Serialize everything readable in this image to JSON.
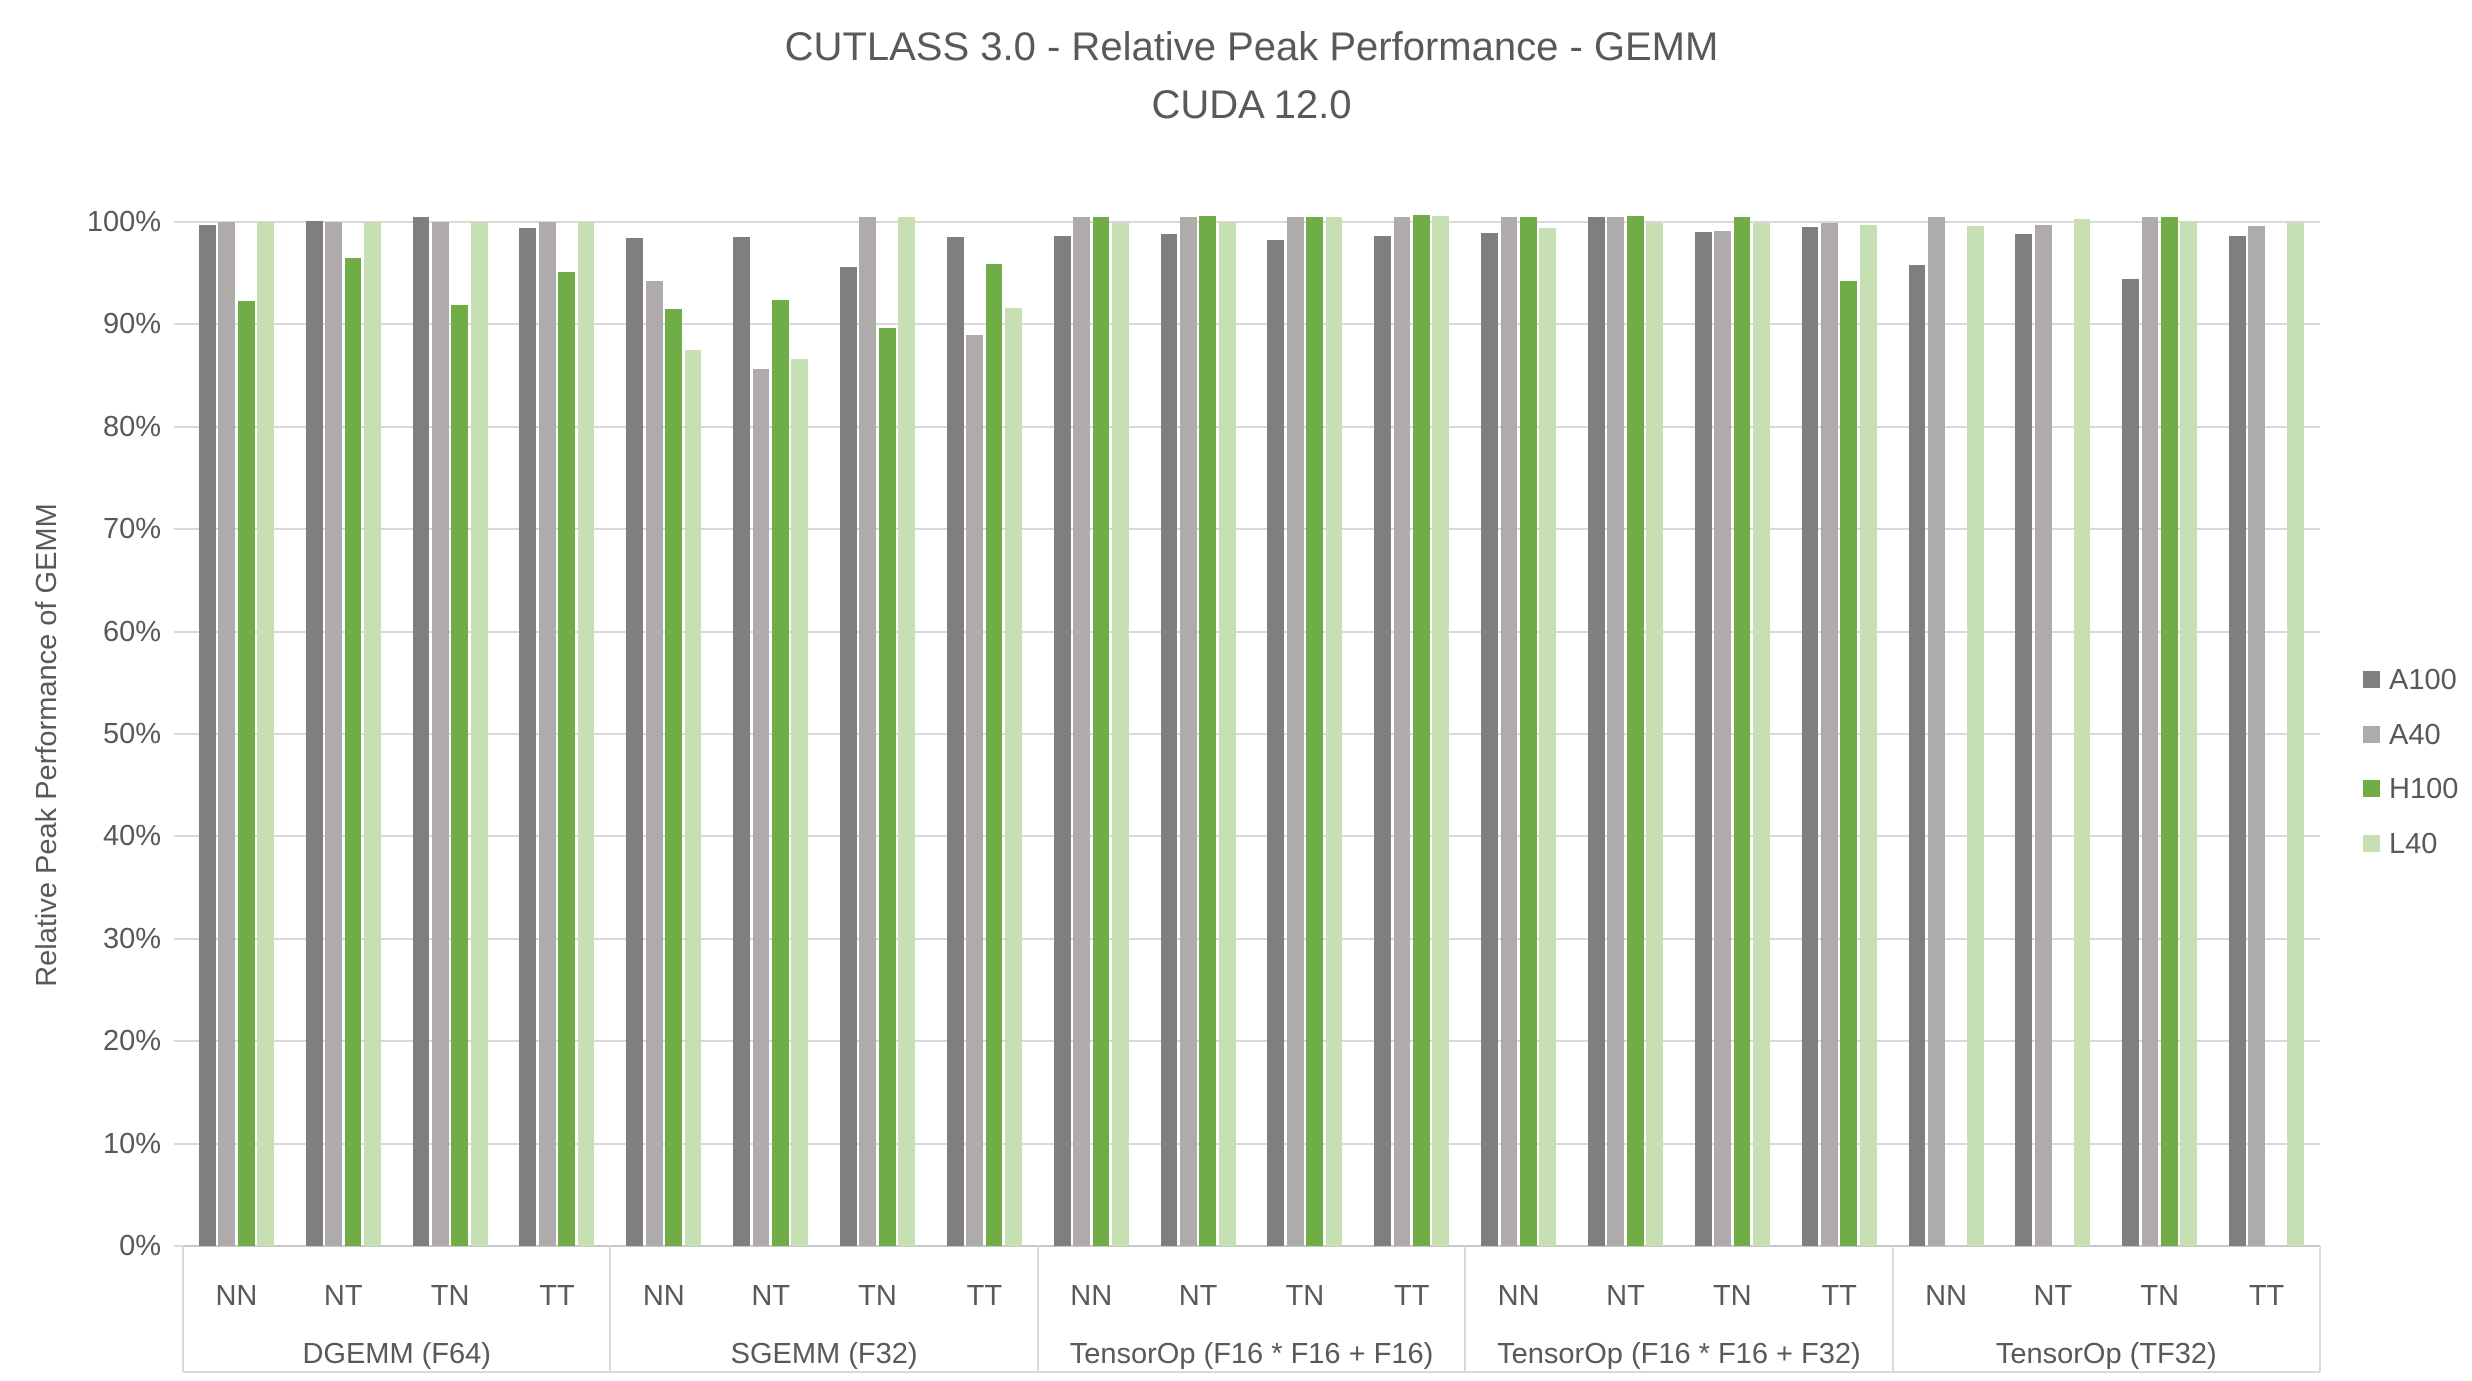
{
  "title": "CUTLASS 3.0 - Relative Peak Performance - GEMM",
  "subtitle": "CUDA 12.0",
  "chart_data": {
    "type": "bar",
    "title": "CUTLASS 3.0 - Relative Peak Performance - GEMM",
    "subtitle": "CUDA 12.0",
    "ylabel": "Relative Peak Performance of GEMM",
    "ylim": [
      0,
      100
    ],
    "ytick_labels": [
      "0%",
      "10%",
      "20%",
      "30%",
      "40%",
      "50%",
      "60%",
      "70%",
      "80%",
      "90%",
      "100%"
    ],
    "grid": true,
    "legend_position": "right",
    "value_unit": "percent",
    "groups": [
      "DGEMM (F64)",
      "SGEMM (F32)",
      "TensorOp (F16 * F16 + F16)",
      "TensorOp (F16 * F16 + F32)",
      "TensorOp (TF32)"
    ],
    "categories": [
      "NN",
      "NT",
      "TN",
      "TT"
    ],
    "series": [
      {
        "name": "A100",
        "color": "#7f7f7f",
        "values": [
          99.7,
          100.1,
          100.5,
          99.4,
          98.4,
          98.5,
          95.6,
          98.5,
          98.6,
          98.8,
          98.2,
          98.6,
          98.9,
          100.5,
          99.0,
          99.5,
          95.8,
          98.8,
          94.4,
          98.6
        ]
      },
      {
        "name": "A40",
        "color": "#afabab",
        "values": [
          100.0,
          100.0,
          100.0,
          100.0,
          94.2,
          85.6,
          100.5,
          89.0,
          100.5,
          100.5,
          100.5,
          100.5,
          100.5,
          100.5,
          99.1,
          99.9,
          100.5,
          99.7,
          100.5,
          99.6
        ]
      },
      {
        "name": "H100",
        "color": "#70ad47",
        "values": [
          92.3,
          96.5,
          91.9,
          95.1,
          91.5,
          92.4,
          89.6,
          95.9,
          100.5,
          100.6,
          100.5,
          100.7,
          100.5,
          100.6,
          100.5,
          94.2,
          null,
          null,
          100.5,
          null
        ]
      },
      {
        "name": "L40",
        "color": "#c6e0b4",
        "values": [
          100.0,
          100.0,
          100.0,
          100.0,
          87.5,
          86.6,
          100.5,
          91.6,
          99.9,
          100.0,
          100.5,
          100.6,
          99.4,
          99.9,
          99.9,
          99.7,
          99.6,
          100.3,
          100.1,
          99.9
        ]
      }
    ]
  }
}
